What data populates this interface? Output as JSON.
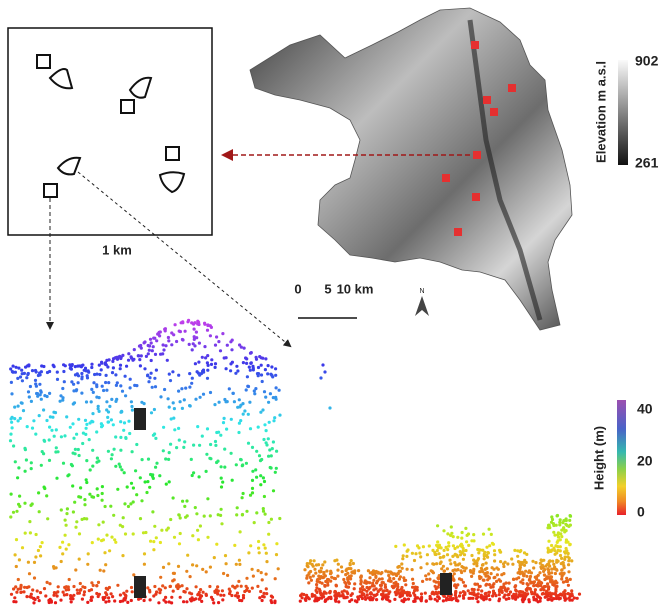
{
  "inset": {
    "scale_label": "1 km"
  },
  "map": {
    "scale_labels": [
      "0",
      "5",
      "10 km"
    ],
    "north_label": "N",
    "colorbar": {
      "title": "Elevation m a.s.l",
      "max_label": "902",
      "min_label": "261"
    }
  },
  "point_cloud": {
    "colorbar": {
      "title": "Height (m)",
      "tick_labels": [
        "40",
        "20",
        "0"
      ]
    }
  }
}
